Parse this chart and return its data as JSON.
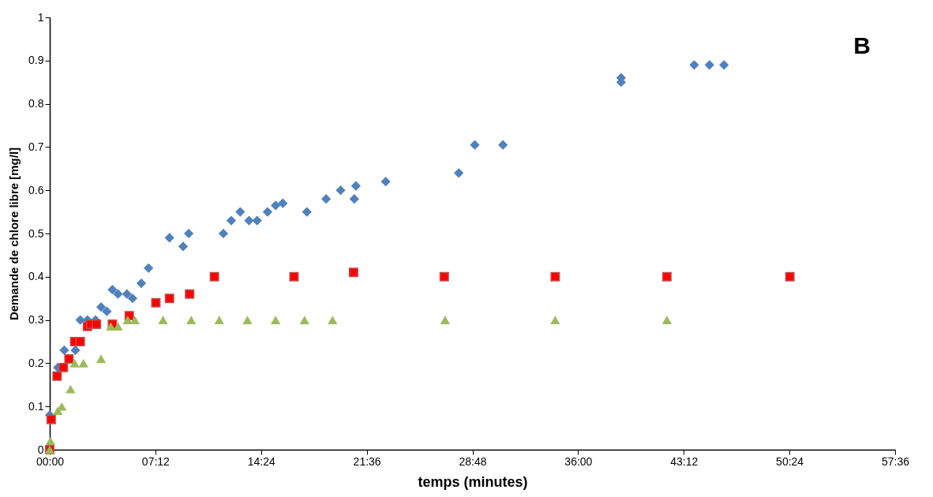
{
  "chart_data": {
    "type": "scatter",
    "xlabel": "temps (minutes)",
    "ylabel": "Demande de chlore libre [mg/l]",
    "annotations": [
      "B"
    ],
    "xlim": [
      0,
      57.6
    ],
    "xticks": [
      {
        "value": 0,
        "label": "00:00"
      },
      {
        "value": 7.2,
        "label": "07:12"
      },
      {
        "value": 14.4,
        "label": "14:24"
      },
      {
        "value": 21.6,
        "label": "21:36"
      },
      {
        "value": 28.8,
        "label": "28:48"
      },
      {
        "value": 36,
        "label": "36:00"
      },
      {
        "value": 43.2,
        "label": "43:12"
      },
      {
        "value": 50.4,
        "label": "50:24"
      },
      {
        "value": 57.6,
        "label": "57:36"
      }
    ],
    "ylim": [
      0,
      1
    ],
    "yticks": [
      0,
      0.1,
      0.2,
      0.3,
      0.4,
      0.5,
      0.6,
      0.7,
      0.8,
      0.9,
      1
    ],
    "grid": false,
    "series": [
      {
        "color": "#4f81bd",
        "marker": "diamond",
        "x": [
          0,
          0.55,
          0.99,
          1.75,
          2.08,
          2.57,
          3.12,
          3.5,
          3.89,
          4.27,
          4.65,
          5.26,
          5.64,
          6.24,
          6.73,
          8.16,
          9.09,
          9.47,
          11.83,
          12.37,
          12.98,
          13.58,
          14.13,
          14.84,
          15.39,
          15.88,
          17.52,
          18.83,
          19.82,
          20.75,
          20.86,
          22.89,
          27.87,
          28.96,
          30.88,
          38.93,
          38.93,
          43.91,
          44.95,
          45.94
        ],
        "values": [
          0.08,
          0.19,
          0.23,
          0.23,
          0.3,
          0.3,
          0.3,
          0.33,
          0.32,
          0.37,
          0.36,
          0.36,
          0.35,
          0.385,
          0.42,
          0.49,
          0.47,
          0.5,
          0.5,
          0.53,
          0.55,
          0.53,
          0.53,
          0.55,
          0.565,
          0.57,
          0.55,
          0.58,
          0.6,
          0.58,
          0.61,
          0.62,
          0.64,
          0.705,
          0.705,
          0.86,
          0.85,
          0.89,
          0.89,
          0.89
        ]
      },
      {
        "color": "#ff0000",
        "marker": "square",
        "x": [
          0,
          0.1,
          0.5,
          0.93,
          1.31,
          1.7,
          2.08,
          2.57,
          2.79,
          3.18,
          4.27,
          5.42,
          7.23,
          8.16,
          9.53,
          11.22,
          16.64,
          20.7,
          26.88,
          34.44,
          42.05,
          50.43
        ],
        "values": [
          0,
          0.07,
          0.17,
          0.19,
          0.21,
          0.25,
          0.25,
          0.285,
          0.29,
          0.29,
          0.29,
          0.31,
          0.34,
          0.35,
          0.36,
          0.4,
          0.4,
          0.41,
          0.4,
          0.4,
          0.4,
          0.4
        ]
      },
      {
        "color": "#9bbb59",
        "marker": "triangle",
        "x": [
          0,
          0.05,
          0.55,
          0.82,
          1.42,
          1.7,
          2.3,
          3.5,
          4.16,
          4.65,
          5.31,
          5.8,
          7.72,
          9.64,
          11.55,
          13.47,
          15.39,
          17.36,
          19.27,
          26.94,
          34.44,
          42.05
        ],
        "values": [
          0,
          0.02,
          0.09,
          0.1,
          0.14,
          0.2,
          0.2,
          0.21,
          0.285,
          0.285,
          0.3,
          0.3,
          0.3,
          0.3,
          0.3,
          0.3,
          0.3,
          0.3,
          0.3,
          0.3,
          0.3,
          0.3
        ]
      }
    ]
  }
}
